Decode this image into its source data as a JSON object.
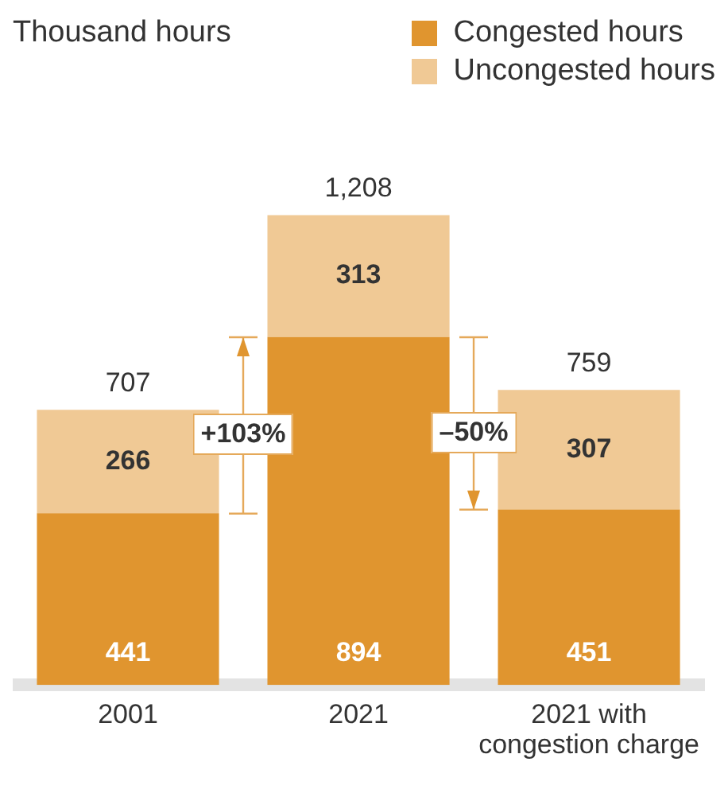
{
  "chart_data": {
    "type": "bar",
    "stacked": true,
    "legend": "top right",
    "data_labels": true,
    "grid": false,
    "categories": [
      "2001",
      "2021",
      "2021 with congestion charge"
    ],
    "series": [
      {
        "name": "Congested hours",
        "color": "#e0952f",
        "values": [
          441,
          894,
          451
        ]
      },
      {
        "name": "Uncongested hours",
        "color": "#f0c995",
        "values": [
          266,
          313,
          307
        ]
      }
    ],
    "totals": [
      "707",
      "1,208",
      "759"
    ],
    "annotations": [
      "Thousand hours",
      "+103%",
      "–50%"
    ]
  }
}
